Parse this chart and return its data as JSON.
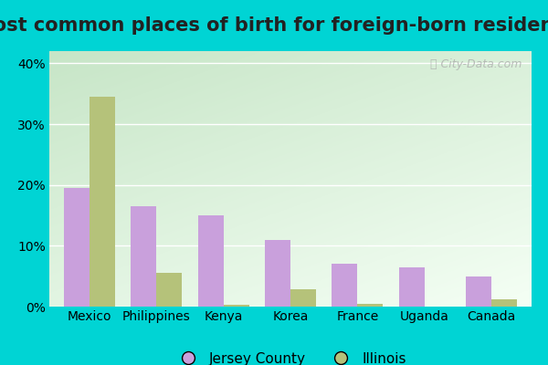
{
  "title": "Most common places of birth for foreign-born residents",
  "categories": [
    "Mexico",
    "Philippines",
    "Kenya",
    "Korea",
    "France",
    "Uganda",
    "Canada"
  ],
  "jersey_county": [
    19.5,
    16.5,
    15.0,
    11.0,
    7.0,
    6.5,
    5.0
  ],
  "illinois": [
    34.5,
    5.5,
    0.3,
    2.8,
    0.4,
    0.0,
    1.2
  ],
  "jersey_color": "#c9a0dc",
  "illinois_color": "#b5c27a",
  "bar_width": 0.38,
  "ylim": [
    0,
    42
  ],
  "yticks": [
    0,
    10,
    20,
    30,
    40
  ],
  "ytick_labels": [
    "0%",
    "10%",
    "20%",
    "30%",
    "40%"
  ],
  "legend_jersey": "Jersey County",
  "legend_illinois": "Illinois",
  "outer_bg_color": "#00d4d4",
  "title_fontsize": 15,
  "axis_label_fontsize": 10,
  "legend_fontsize": 11,
  "watermark_text": "ⓘ City-Data.com",
  "bg_gradient_top": "#c8e6c9",
  "bg_gradient_bottom": "#f0fff0"
}
